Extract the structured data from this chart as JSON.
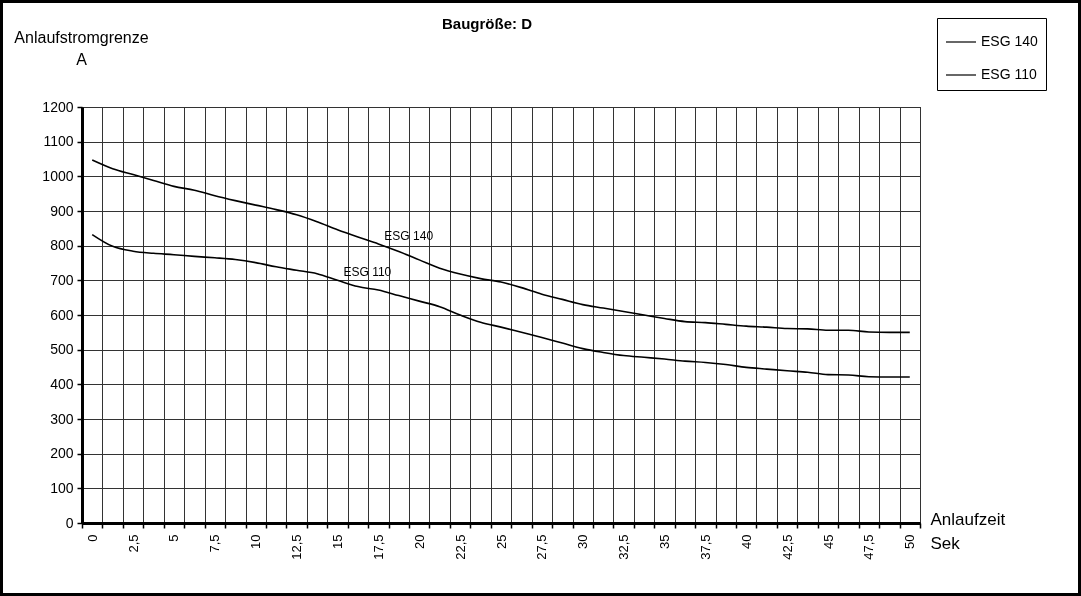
{
  "chart_data": {
    "type": "line",
    "title": "Baugröße: D",
    "xlabel": "Anlaufzeit\nSek",
    "ylabel": "Anlaufstromgrenze\nA",
    "categories": [
      "0",
      null,
      "2,5",
      null,
      "5",
      null,
      "7,5",
      null,
      "10",
      null,
      "12,5",
      null,
      "15",
      null,
      "17,5",
      null,
      "20",
      null,
      "22,5",
      null,
      "25",
      null,
      "27,5",
      null,
      "30",
      null,
      "32,5",
      null,
      "35",
      null,
      "37,5",
      null,
      "40",
      null,
      "42,5",
      null,
      "45",
      null,
      "47,5",
      null,
      "50"
    ],
    "series": [
      {
        "name": "ESG 140",
        "color": "#000000",
        "values": [
          1047,
          1022,
          1005,
          988,
          971,
          960,
          944,
          930,
          917,
          904,
          889,
          869,
          846,
          825,
          805,
          783,
          759,
          735,
          718,
          705,
          695,
          679,
          660,
          645,
          630,
          620,
          610,
          600,
          590,
          581,
          578,
          573,
          568,
          565,
          561,
          560,
          556,
          556,
          551,
          550,
          550
        ]
      },
      {
        "name": "ESG 110",
        "color": "#000000",
        "values": [
          832,
          798,
          784,
          778,
          774,
          769,
          765,
          760,
          751,
          739,
          729,
          719,
          700,
          682,
          672,
          656,
          640,
          624,
          600,
          579,
          565,
          550,
          535,
          519,
          503,
          492,
          483,
          478,
          473,
          467,
          463,
          457,
          449,
          444,
          439,
          435,
          428,
          427,
          422,
          421,
          421
        ]
      }
    ],
    "ylim": [
      0,
      1200
    ],
    "yticks": [
      0,
      100,
      200,
      300,
      400,
      500,
      600,
      700,
      800,
      900,
      1000,
      1100,
      1200
    ],
    "grid": true,
    "legend": "top right"
  }
}
